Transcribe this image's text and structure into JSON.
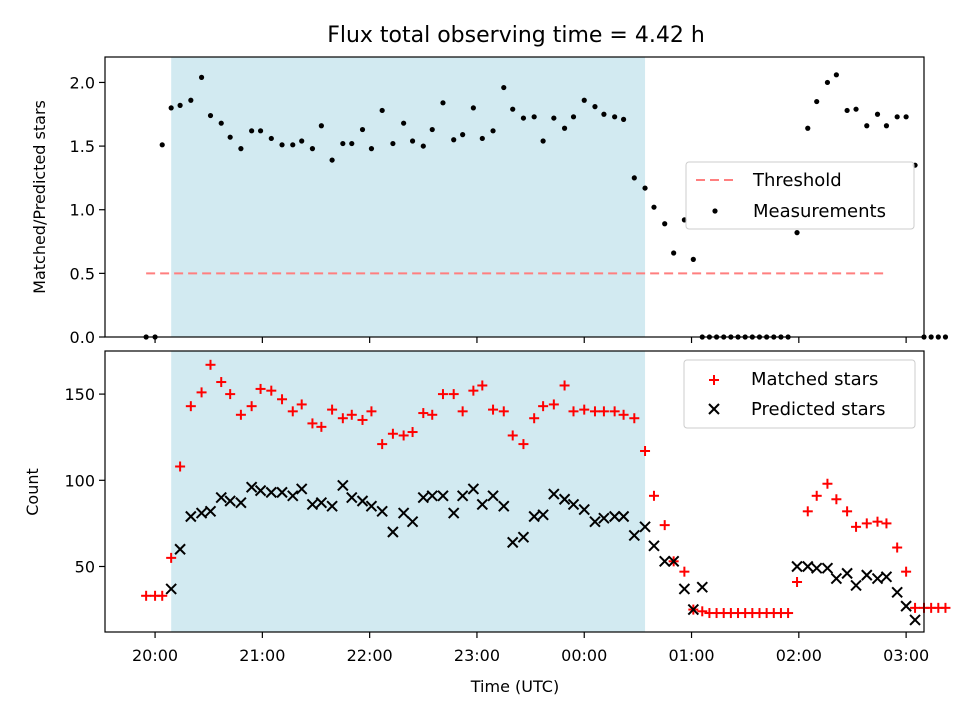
{
  "title": "Flux total observing time = 4.42 h",
  "colors": {
    "shade": "#add8e6",
    "threshold": "#ff7f7f",
    "matched": "#ff0000",
    "predicted": "#000000",
    "measurement": "#000000"
  },
  "top": {
    "ylabel": "Matched/Predicted stars",
    "legend": {
      "threshold": "Threshold",
      "measurements": "Measurements"
    }
  },
  "bottom": {
    "ylabel": "Count",
    "xlabel": "Time (UTC)",
    "legend": {
      "matched": "Matched stars",
      "predicted": "Predicted stars"
    }
  },
  "chart_data": [
    {
      "panel": "top",
      "type": "scatter",
      "title": "Flux total observing time = 4.42 h",
      "xlabel": "",
      "ylabel": "Matched/Predicted stars",
      "xlim": [
        "19:32",
        "03:10"
      ],
      "ylim": [
        0,
        2.2
      ],
      "yticks": [
        0.0,
        0.5,
        1.0,
        1.5,
        2.0
      ],
      "xticks": [
        "20:00",
        "21:00",
        "22:00",
        "23:00",
        "00:00",
        "01:00",
        "02:00",
        "03:00"
      ],
      "shaded_interval": [
        "20:09",
        "00:34"
      ],
      "threshold": {
        "name": "Threshold",
        "y": 0.5,
        "x_range": [
          "19:55",
          "02:49"
        ],
        "style": "dashed"
      },
      "legend_position": "right",
      "series": [
        {
          "name": "Measurements",
          "points": [
            [
              "19:55",
              0.0
            ],
            [
              "20:00",
              0.0
            ],
            [
              "20:04",
              1.51
            ],
            [
              "20:09",
              1.8
            ],
            [
              "20:14",
              1.82
            ],
            [
              "20:20",
              1.86
            ],
            [
              "20:26",
              2.04
            ],
            [
              "20:31",
              1.74
            ],
            [
              "20:37",
              1.68
            ],
            [
              "20:42",
              1.57
            ],
            [
              "20:48",
              1.48
            ],
            [
              "20:54",
              1.62
            ],
            [
              "20:59",
              1.62
            ],
            [
              "21:05",
              1.56
            ],
            [
              "21:11",
              1.51
            ],
            [
              "21:17",
              1.51
            ],
            [
              "21:22",
              1.54
            ],
            [
              "21:28",
              1.48
            ],
            [
              "21:33",
              1.66
            ],
            [
              "21:39",
              1.39
            ],
            [
              "21:45",
              1.52
            ],
            [
              "21:50",
              1.52
            ],
            [
              "21:56",
              1.63
            ],
            [
              "22:01",
              1.48
            ],
            [
              "22:07",
              1.78
            ],
            [
              "22:13",
              1.52
            ],
            [
              "22:19",
              1.68
            ],
            [
              "22:24",
              1.54
            ],
            [
              "22:30",
              1.5
            ],
            [
              "22:35",
              1.63
            ],
            [
              "22:41",
              1.84
            ],
            [
              "22:47",
              1.55
            ],
            [
              "22:52",
              1.59
            ],
            [
              "22:58",
              1.8
            ],
            [
              "23:03",
              1.56
            ],
            [
              "23:09",
              1.62
            ],
            [
              "23:15",
              1.96
            ],
            [
              "23:20",
              1.79
            ],
            [
              "23:26",
              1.72
            ],
            [
              "23:32",
              1.73
            ],
            [
              "23:37",
              1.54
            ],
            [
              "23:43",
              1.72
            ],
            [
              "23:49",
              1.64
            ],
            [
              "23:54",
              1.73
            ],
            [
              "00:00",
              1.86
            ],
            [
              "00:06",
              1.81
            ],
            [
              "00:11",
              1.75
            ],
            [
              "00:17",
              1.73
            ],
            [
              "00:22",
              1.71
            ],
            [
              "00:28",
              1.25
            ],
            [
              "00:34",
              1.17
            ],
            [
              "00:39",
              1.02
            ],
            [
              "00:45",
              0.89
            ],
            [
              "00:50",
              0.66
            ],
            [
              "00:56",
              0.92
            ],
            [
              "01:01",
              0.61
            ],
            [
              "01:06",
              0.0
            ],
            [
              "01:10",
              0.0
            ],
            [
              "01:14",
              0.0
            ],
            [
              "01:18",
              0.0
            ],
            [
              "01:22",
              0.0
            ],
            [
              "01:26",
              0.0
            ],
            [
              "01:30",
              0.0
            ],
            [
              "01:34",
              0.0
            ],
            [
              "01:38",
              0.0
            ],
            [
              "01:42",
              0.0
            ],
            [
              "01:46",
              0.0
            ],
            [
              "01:50",
              0.0
            ],
            [
              "01:54",
              0.0
            ],
            [
              "01:59",
              0.82
            ],
            [
              "02:05",
              1.64
            ],
            [
              "02:10",
              1.85
            ],
            [
              "02:16",
              2.0
            ],
            [
              "02:21",
              2.06
            ],
            [
              "02:27",
              1.78
            ],
            [
              "02:32",
              1.79
            ],
            [
              "02:38",
              1.66
            ],
            [
              "02:44",
              1.75
            ],
            [
              "02:49",
              1.66
            ],
            [
              "02:55",
              1.73
            ],
            [
              "03:00",
              1.73
            ],
            [
              "03:05",
              1.35
            ],
            [
              "03:10",
              0.0
            ],
            [
              "03:14",
              0.0
            ],
            [
              "03:18",
              0.0
            ],
            [
              "03:22",
              0.0
            ]
          ]
        }
      ]
    },
    {
      "panel": "bottom",
      "type": "scatter",
      "xlabel": "Time (UTC)",
      "ylabel": "Count",
      "xlim": [
        "19:32",
        "03:10"
      ],
      "ylim": [
        12,
        175
      ],
      "yticks": [
        50,
        100,
        150
      ],
      "xticks": [
        "20:00",
        "21:00",
        "22:00",
        "23:00",
        "00:00",
        "01:00",
        "02:00",
        "03:00"
      ],
      "shaded_interval": [
        "20:09",
        "00:34"
      ],
      "legend_position": "top-right",
      "series": [
        {
          "name": "Matched stars",
          "marker": "plus",
          "points": [
            [
              "19:55",
              33
            ],
            [
              "20:00",
              33
            ],
            [
              "20:04",
              33
            ],
            [
              "20:09",
              55
            ],
            [
              "20:14",
              108
            ],
            [
              "20:20",
              143
            ],
            [
              "20:26",
              151
            ],
            [
              "20:31",
              167
            ],
            [
              "20:37",
              157
            ],
            [
              "20:42",
              150
            ],
            [
              "20:48",
              138
            ],
            [
              "20:54",
              143
            ],
            [
              "20:59",
              153
            ],
            [
              "21:05",
              152
            ],
            [
              "21:11",
              147
            ],
            [
              "21:17",
              140
            ],
            [
              "21:22",
              144
            ],
            [
              "21:28",
              133
            ],
            [
              "21:33",
              131
            ],
            [
              "21:39",
              141
            ],
            [
              "21:45",
              136
            ],
            [
              "21:50",
              138
            ],
            [
              "21:56",
              135
            ],
            [
              "22:01",
              140
            ],
            [
              "22:07",
              121
            ],
            [
              "22:13",
              127
            ],
            [
              "22:19",
              126
            ],
            [
              "22:24",
              128
            ],
            [
              "22:30",
              139
            ],
            [
              "22:35",
              138
            ],
            [
              "22:41",
              150
            ],
            [
              "22:47",
              150
            ],
            [
              "22:52",
              140
            ],
            [
              "22:58",
              152
            ],
            [
              "23:03",
              155
            ],
            [
              "23:09",
              141
            ],
            [
              "23:15",
              140
            ],
            [
              "23:20",
              126
            ],
            [
              "23:26",
              121
            ],
            [
              "23:32",
              136
            ],
            [
              "23:37",
              143
            ],
            [
              "23:43",
              144
            ],
            [
              "23:49",
              155
            ],
            [
              "23:54",
              140
            ],
            [
              "00:00",
              141
            ],
            [
              "00:06",
              140
            ],
            [
              "00:11",
              140
            ],
            [
              "00:17",
              140
            ],
            [
              "00:22",
              138
            ],
            [
              "00:28",
              136
            ],
            [
              "00:34",
              117
            ],
            [
              "00:39",
              91
            ],
            [
              "00:45",
              74
            ],
            [
              "00:50",
              53
            ],
            [
              "00:56",
              47
            ],
            [
              "01:01",
              25
            ],
            [
              "01:06",
              24
            ],
            [
              "01:10",
              23
            ],
            [
              "01:14",
              23
            ],
            [
              "01:18",
              23
            ],
            [
              "01:22",
              23
            ],
            [
              "01:26",
              23
            ],
            [
              "01:30",
              23
            ],
            [
              "01:34",
              23
            ],
            [
              "01:38",
              23
            ],
            [
              "01:42",
              23
            ],
            [
              "01:46",
              23
            ],
            [
              "01:50",
              23
            ],
            [
              "01:54",
              23
            ],
            [
              "01:59",
              41
            ],
            [
              "02:05",
              82
            ],
            [
              "02:10",
              91
            ],
            [
              "02:16",
              98
            ],
            [
              "02:21",
              89
            ],
            [
              "02:27",
              82
            ],
            [
              "02:32",
              73
            ],
            [
              "02:38",
              75
            ],
            [
              "02:44",
              76
            ],
            [
              "02:49",
              75
            ],
            [
              "02:55",
              61
            ],
            [
              "03:00",
              47
            ],
            [
              "03:05",
              26
            ],
            [
              "03:10",
              26
            ],
            [
              "03:14",
              26
            ],
            [
              "03:18",
              26
            ],
            [
              "03:22",
              26
            ]
          ]
        },
        {
          "name": "Predicted stars",
          "marker": "x",
          "points": [
            [
              "20:09",
              37
            ],
            [
              "20:14",
              60
            ],
            [
              "20:20",
              79
            ],
            [
              "20:26",
              81
            ],
            [
              "20:31",
              82
            ],
            [
              "20:37",
              90
            ],
            [
              "20:42",
              88
            ],
            [
              "20:48",
              87
            ],
            [
              "20:54",
              96
            ],
            [
              "20:59",
              94
            ],
            [
              "21:05",
              93
            ],
            [
              "21:11",
              93
            ],
            [
              "21:17",
              91
            ],
            [
              "21:22",
              95
            ],
            [
              "21:28",
              86
            ],
            [
              "21:33",
              87
            ],
            [
              "21:39",
              85
            ],
            [
              "21:45",
              97
            ],
            [
              "21:50",
              90
            ],
            [
              "21:56",
              88
            ],
            [
              "22:01",
              85
            ],
            [
              "22:07",
              82
            ],
            [
              "22:13",
              70
            ],
            [
              "22:19",
              81
            ],
            [
              "22:24",
              76
            ],
            [
              "22:30",
              90
            ],
            [
              "22:35",
              91
            ],
            [
              "22:41",
              91
            ],
            [
              "22:47",
              81
            ],
            [
              "22:52",
              91
            ],
            [
              "22:58",
              95
            ],
            [
              "23:03",
              86
            ],
            [
              "23:09",
              91
            ],
            [
              "23:15",
              85
            ],
            [
              "23:20",
              64
            ],
            [
              "23:26",
              67
            ],
            [
              "23:32",
              79
            ],
            [
              "23:37",
              80
            ],
            [
              "23:43",
              92
            ],
            [
              "23:49",
              89
            ],
            [
              "23:54",
              86
            ],
            [
              "00:00",
              83
            ],
            [
              "00:06",
              76
            ],
            [
              "00:11",
              78
            ],
            [
              "00:17",
              79
            ],
            [
              "00:22",
              79
            ],
            [
              "00:28",
              68
            ],
            [
              "00:34",
              73
            ],
            [
              "00:39",
              62
            ],
            [
              "00:45",
              53
            ],
            [
              "00:50",
              53
            ],
            [
              "00:56",
              37
            ],
            [
              "01:01",
              25
            ],
            [
              "01:06",
              38
            ],
            [
              "01:59",
              50
            ],
            [
              "02:05",
              50
            ],
            [
              "02:10",
              49
            ],
            [
              "02:16",
              49
            ],
            [
              "02:21",
              43
            ],
            [
              "02:27",
              46
            ],
            [
              "02:32",
              39
            ],
            [
              "02:38",
              45
            ],
            [
              "02:44",
              43
            ],
            [
              "02:49",
              44
            ],
            [
              "02:55",
              35
            ],
            [
              "03:00",
              27
            ],
            [
              "03:05",
              19
            ]
          ]
        }
      ]
    }
  ]
}
